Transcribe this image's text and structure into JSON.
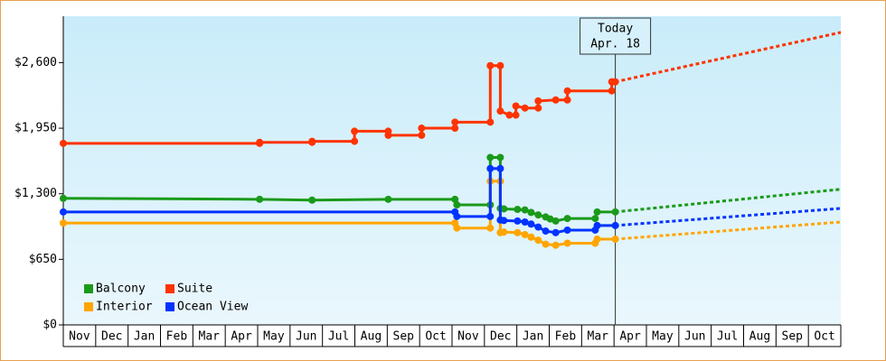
{
  "chart_data": {
    "type": "line",
    "categories": [
      "Nov",
      "Dec",
      "Jan",
      "Feb",
      "Mar",
      "Apr",
      "May",
      "Jun",
      "Jul",
      "Aug",
      "Sep",
      "Oct",
      "Nov",
      "Dec",
      "Jan",
      "Feb",
      "Mar",
      "Apr",
      "May",
      "Jun",
      "Jul",
      "Aug",
      "Sep",
      "Oct"
    ],
    "xlim": [
      0,
      24
    ],
    "ylim": [
      0,
      3060
    ],
    "yticks": [
      {
        "value": 0,
        "label": "$0"
      },
      {
        "value": 650,
        "label": "$650"
      },
      {
        "value": 1300,
        "label": "$1,300"
      },
      {
        "value": 1950,
        "label": "$1,950"
      },
      {
        "value": 2600,
        "label": "$2,600"
      }
    ],
    "annotation": {
      "title": "Today",
      "date": "Apr. 18",
      "x": 17.04
    },
    "forecast_x": [
      17.04,
      24
    ],
    "series": [
      {
        "name": "Balcony",
        "color": "#1a9a1a",
        "x": [
          0,
          6.06,
          7.68,
          10.03,
          12.09,
          12.15,
          13.18,
          13.18,
          13.49,
          13.49,
          13.6,
          14.02,
          14.25,
          14.44,
          14.66,
          14.89,
          15.03,
          15.2,
          15.56,
          16.42,
          16.48,
          17.04
        ],
        "values": [
          1255,
          1245,
          1237,
          1245,
          1245,
          1190,
          1190,
          1660,
          1660,
          1155,
          1150,
          1145,
          1140,
          1115,
          1090,
          1070,
          1050,
          1030,
          1055,
          1055,
          1120,
          1120
        ],
        "forecast_values": [
          1120,
          1345
        ]
      },
      {
        "name": "Suite",
        "color": "#ff3300",
        "x": [
          0,
          6.06,
          6.06,
          7.68,
          7.68,
          8.99,
          8.99,
          10.03,
          10.03,
          11.06,
          11.06,
          12.09,
          12.09,
          13.18,
          13.18,
          13.49,
          13.49,
          13.77,
          13.97,
          13.97,
          14.25,
          14.66,
          14.66,
          15.2,
          15.56,
          15.56,
          16.93,
          16.93,
          17.04
        ],
        "values": [
          1800,
          1800,
          1810,
          1810,
          1820,
          1820,
          1920,
          1920,
          1880,
          1880,
          1950,
          1950,
          2010,
          2010,
          2570,
          2570,
          2120,
          2080,
          2080,
          2170,
          2150,
          2150,
          2220,
          2230,
          2230,
          2320,
          2320,
          2410,
          2410
        ],
        "forecast_values": [
          2410,
          2900
        ]
      },
      {
        "name": "Interior",
        "color": "#ffa500",
        "x": [
          0,
          12.09,
          12.15,
          13.18,
          13.18,
          13.49,
          13.49,
          13.6,
          14.02,
          14.25,
          14.44,
          14.66,
          14.89,
          15.2,
          15.56,
          16.42,
          16.48,
          17.04
        ],
        "values": [
          1010,
          1010,
          960,
          960,
          1425,
          1425,
          915,
          920,
          915,
          895,
          870,
          840,
          800,
          790,
          810,
          810,
          850,
          850
        ],
        "forecast_values": [
          850,
          1020
        ]
      },
      {
        "name": "Ocean View",
        "color": "#0033ff",
        "x": [
          0,
          12.09,
          12.15,
          13.18,
          13.18,
          13.49,
          13.49,
          13.6,
          14.02,
          14.25,
          14.44,
          14.66,
          14.89,
          15.2,
          15.56,
          16.42,
          16.48,
          17.04
        ],
        "values": [
          1120,
          1120,
          1075,
          1075,
          1550,
          1550,
          1040,
          1035,
          1030,
          1020,
          1000,
          970,
          930,
          915,
          940,
          940,
          985,
          985
        ],
        "forecast_values": [
          985,
          1155
        ]
      }
    ]
  }
}
